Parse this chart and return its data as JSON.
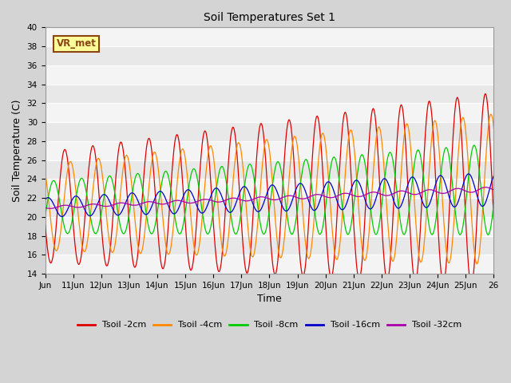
{
  "title": "Soil Temperatures Set 1",
  "xlabel": "Time",
  "ylabel": "Soil Temperature (C)",
  "ylim": [
    14,
    40
  ],
  "xlim_days": [
    10,
    26
  ],
  "fig_bg_color": "#d4d4d4",
  "plot_bg_color": "#e8e8e8",
  "band_color": "#f4f4f4",
  "label_box_text": "VR_met",
  "label_box_facecolor": "#ffff99",
  "label_box_edgecolor": "#8b4513",
  "series": [
    {
      "label": "Tsoil -2cm",
      "color": "#dd0000",
      "depth_cm": 2
    },
    {
      "label": "Tsoil -4cm",
      "color": "#ff8800",
      "depth_cm": 4
    },
    {
      "label": "Tsoil -8cm",
      "color": "#00cc00",
      "depth_cm": 8
    },
    {
      "label": "Tsoil -16cm",
      "color": "#0000cc",
      "depth_cm": 16
    },
    {
      "label": "Tsoil -32cm",
      "color": "#aa00aa",
      "depth_cm": 32
    }
  ],
  "xtick_labels": [
    "Jun",
    "11Jun",
    "12Jun",
    "13Jun",
    "14Jun",
    "15Jun",
    "16Jun",
    "17Jun",
    "18Jun",
    "19Jun",
    "20Jun",
    "21Jun",
    "22Jun",
    "23Jun",
    "24Jun",
    "25Jun",
    "26"
  ],
  "xtick_positions": [
    10,
    11,
    12,
    13,
    14,
    15,
    16,
    17,
    18,
    19,
    20,
    21,
    22,
    23,
    24,
    25,
    26
  ],
  "ytick_positions": [
    14,
    16,
    18,
    20,
    22,
    24,
    26,
    28,
    30,
    32,
    34,
    36,
    38,
    40
  ],
  "mean_base": 21.0,
  "mean_trend": 0.12,
  "amp_surface_base": 7.5,
  "amp_trend": 0.35,
  "damping_depth": 8.0,
  "phase_per_cm": 0.1,
  "dt": 0.02
}
